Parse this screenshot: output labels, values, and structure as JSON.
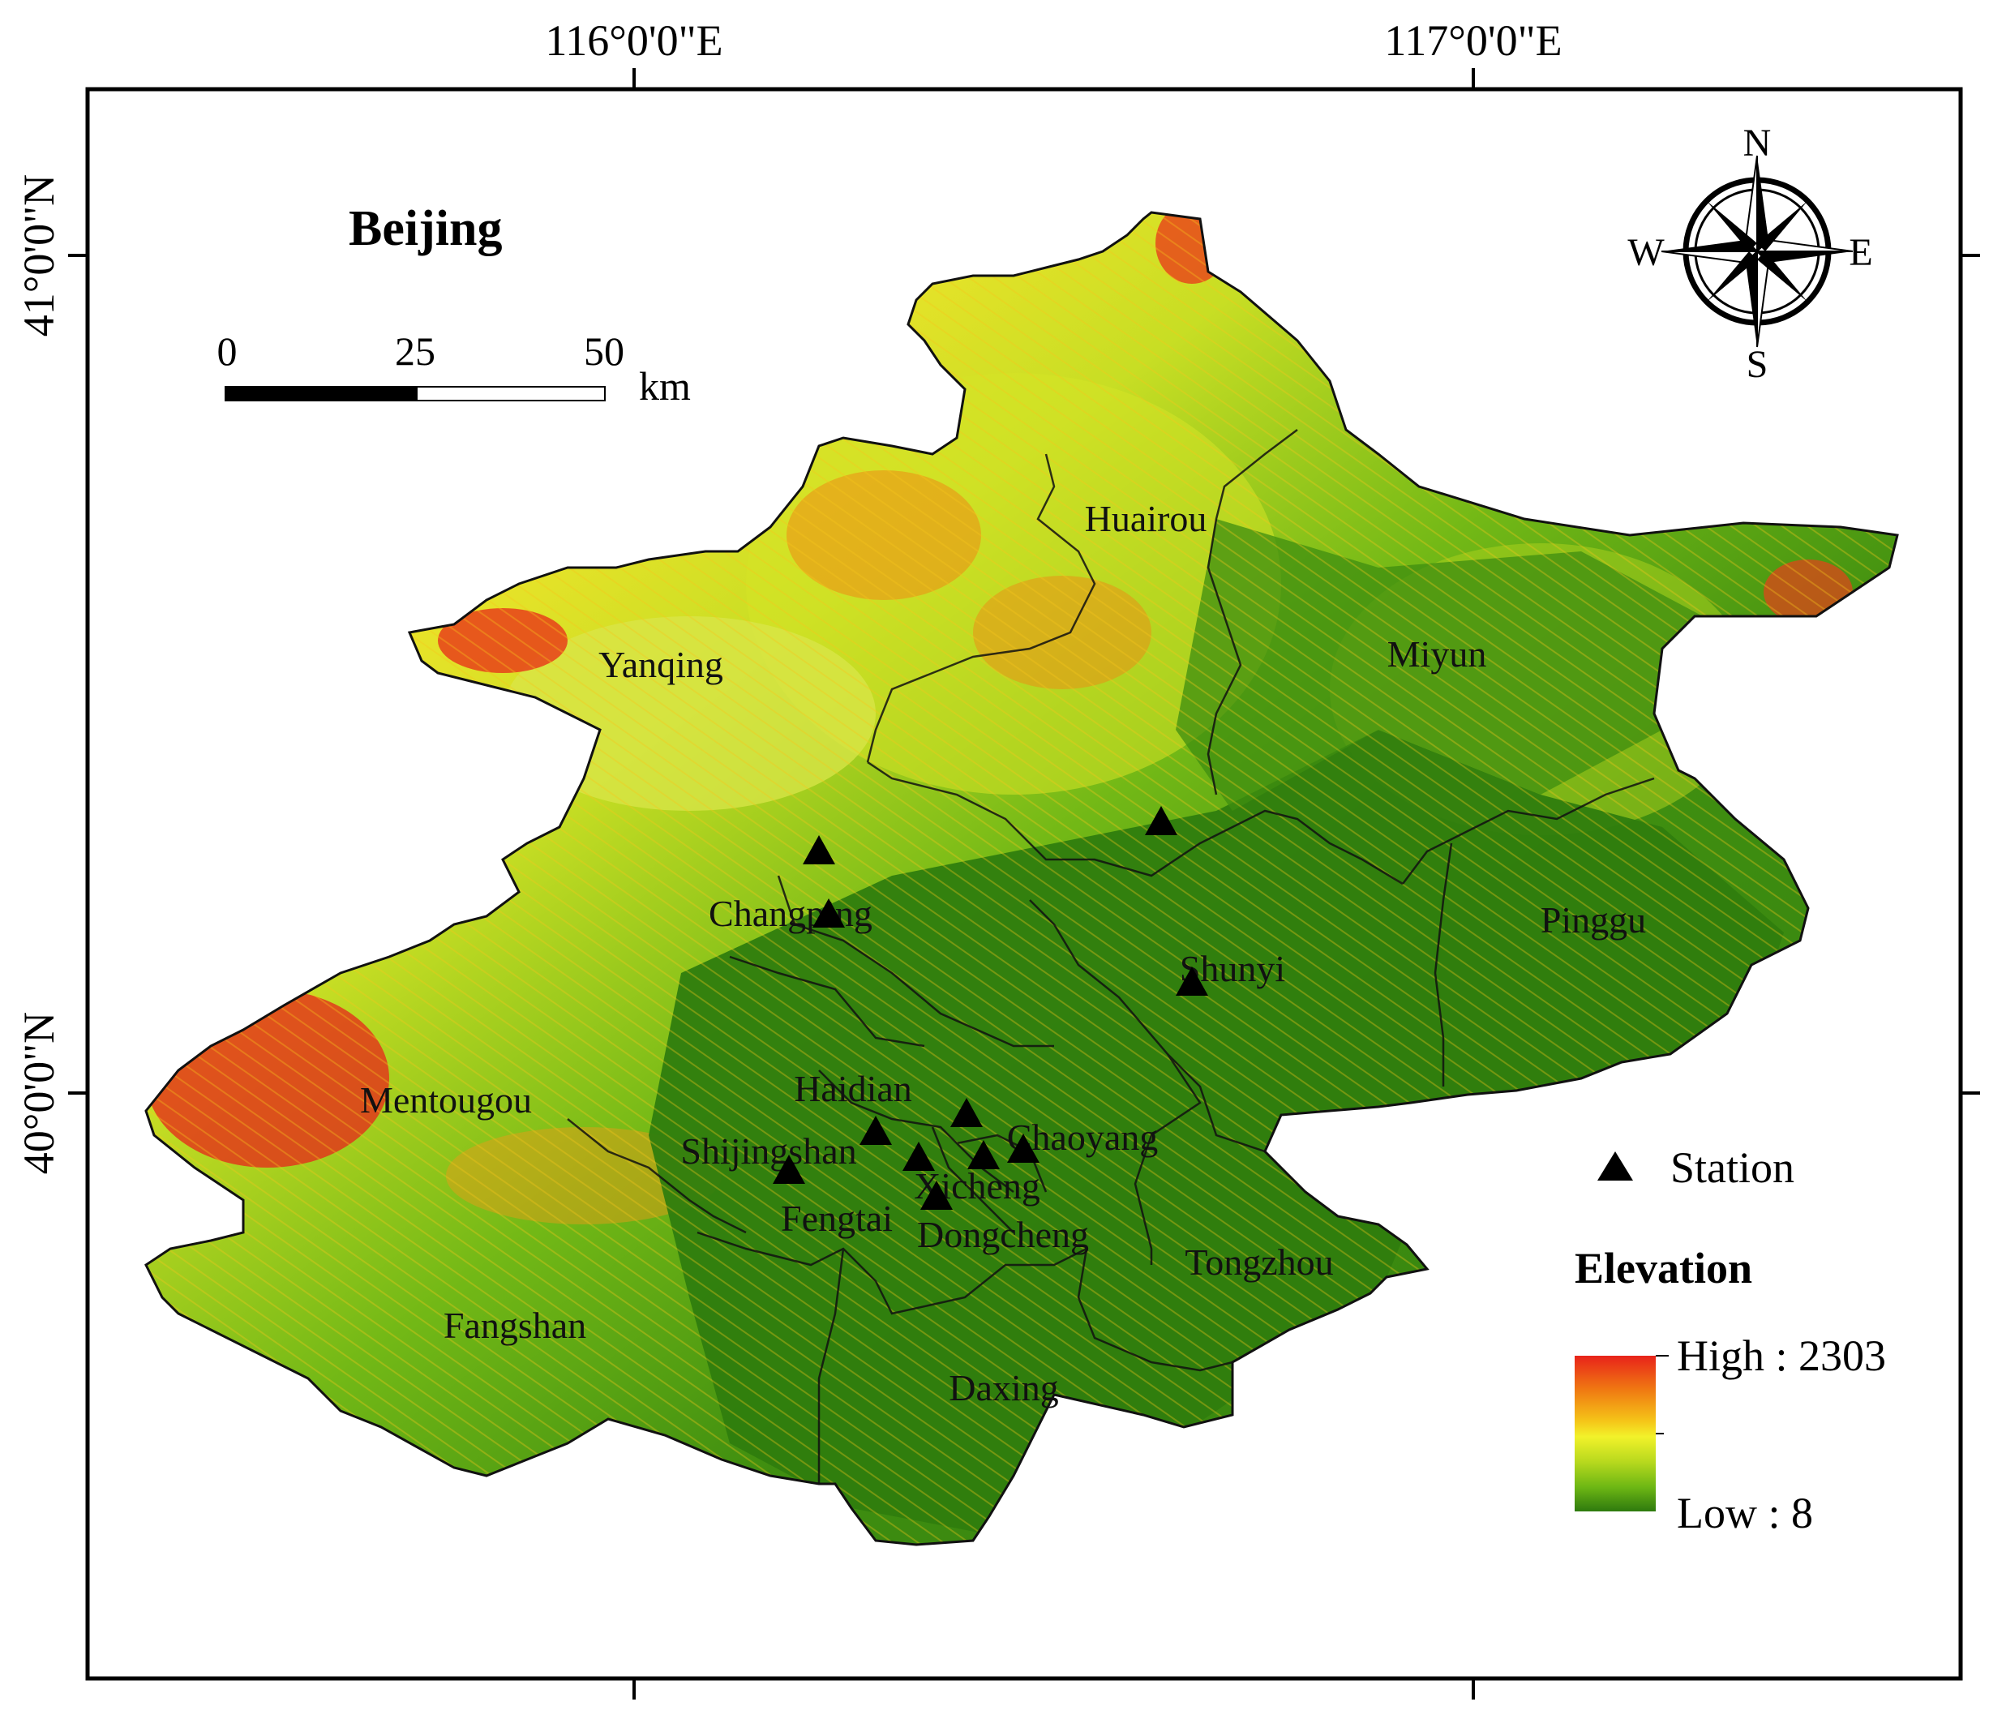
{
  "map": {
    "title": "Beijing",
    "graticule": {
      "lon_labels": [
        "116°0'0\"E",
        "117°0'0\"E"
      ],
      "lat_labels": [
        "41°0'0\"N",
        "40°0'0\"N"
      ]
    },
    "scale_bar": {
      "ticks": [
        "0",
        "25",
        "50"
      ],
      "unit": "km"
    },
    "north_arrow": {
      "n": "N",
      "s": "S",
      "e": "E",
      "w": "W"
    },
    "districts": [
      "Huairou",
      "Yanqing",
      "Miyun",
      "Changping",
      "Pinggu",
      "Shunyi",
      "Mentougou",
      "Haidian",
      "Chaoyang",
      "Shijingshan",
      "Xicheng",
      "Fengtai",
      "Dongcheng",
      "Tongzhou",
      "Fangshan",
      "Daxing"
    ],
    "stations_count": 11,
    "legend": {
      "station_label": "Station",
      "elevation_title": "Elevation",
      "high_label": "High : 2303",
      "low_label": "Low : 8",
      "colors": [
        "#e8231a",
        "#f07a12",
        "#f5c518",
        "#f2f22a",
        "#b8d91e",
        "#6fb814",
        "#3f8e10",
        "#2e7a0e"
      ]
    }
  }
}
